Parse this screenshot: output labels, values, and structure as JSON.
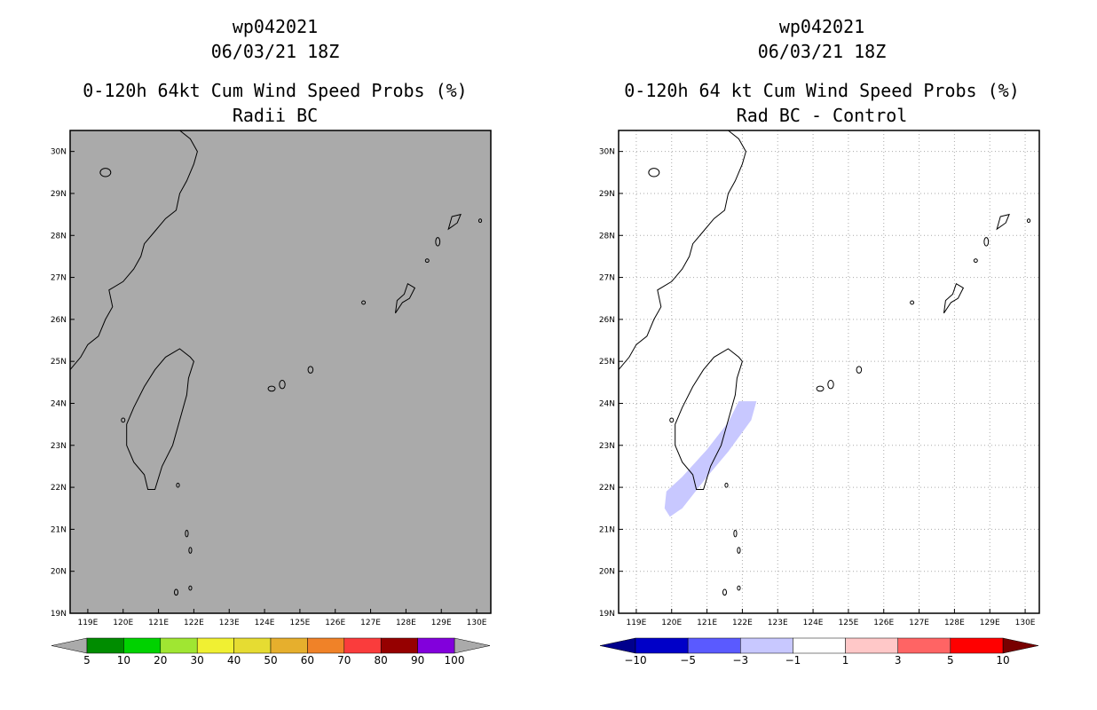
{
  "left": {
    "title_lines": [
      "wp042021",
      "06/03/21 18Z",
      "0-120h 64kt Cum Wind Speed Probs (%)",
      "Radii BC"
    ],
    "background": "#aaaaaa",
    "colorbar": {
      "colors": [
        "#008c00",
        "#00d200",
        "#a0e632",
        "#f0f032",
        "#e6dc32",
        "#e6af2d",
        "#f08228",
        "#fa3c3c",
        "#960000",
        "#8200dc"
      ],
      "labels": [
        "5",
        "10",
        "20",
        "30",
        "40",
        "50",
        "60",
        "70",
        "80",
        "90",
        "100"
      ]
    }
  },
  "right": {
    "title_lines": [
      "wp042021",
      "06/03/21 18Z",
      "0-120h 64 kt Cum Wind Speed Probs (%)",
      "Rad BC - Control"
    ],
    "background": "#ffffff",
    "colorbar": {
      "colors": [
        "#0000c8",
        "#5a5aff",
        "#c8c8ff",
        "#ffffff",
        "#ffc8c8",
        "#ff6464",
        "#ff0000"
      ],
      "end_low": "#00008c",
      "end_high": "#780000",
      "labels": [
        "−10",
        "−5",
        "−3",
        "−1",
        "1",
        "3",
        "5",
        "10"
      ]
    },
    "difference_shade_color": "#c8c8ff"
  },
  "lon_labels": [
    "119E",
    "120E",
    "121E",
    "122E",
    "123E",
    "124E",
    "125E",
    "126E",
    "127E",
    "128E",
    "129E",
    "130E"
  ],
  "lat_labels": [
    "19N",
    "20N",
    "21N",
    "22N",
    "23N",
    "24N",
    "25N",
    "26N",
    "27N",
    "28N",
    "29N",
    "30N"
  ],
  "lon_range": [
    118.5,
    130.4
  ],
  "lat_range": [
    19,
    30.5
  ]
}
